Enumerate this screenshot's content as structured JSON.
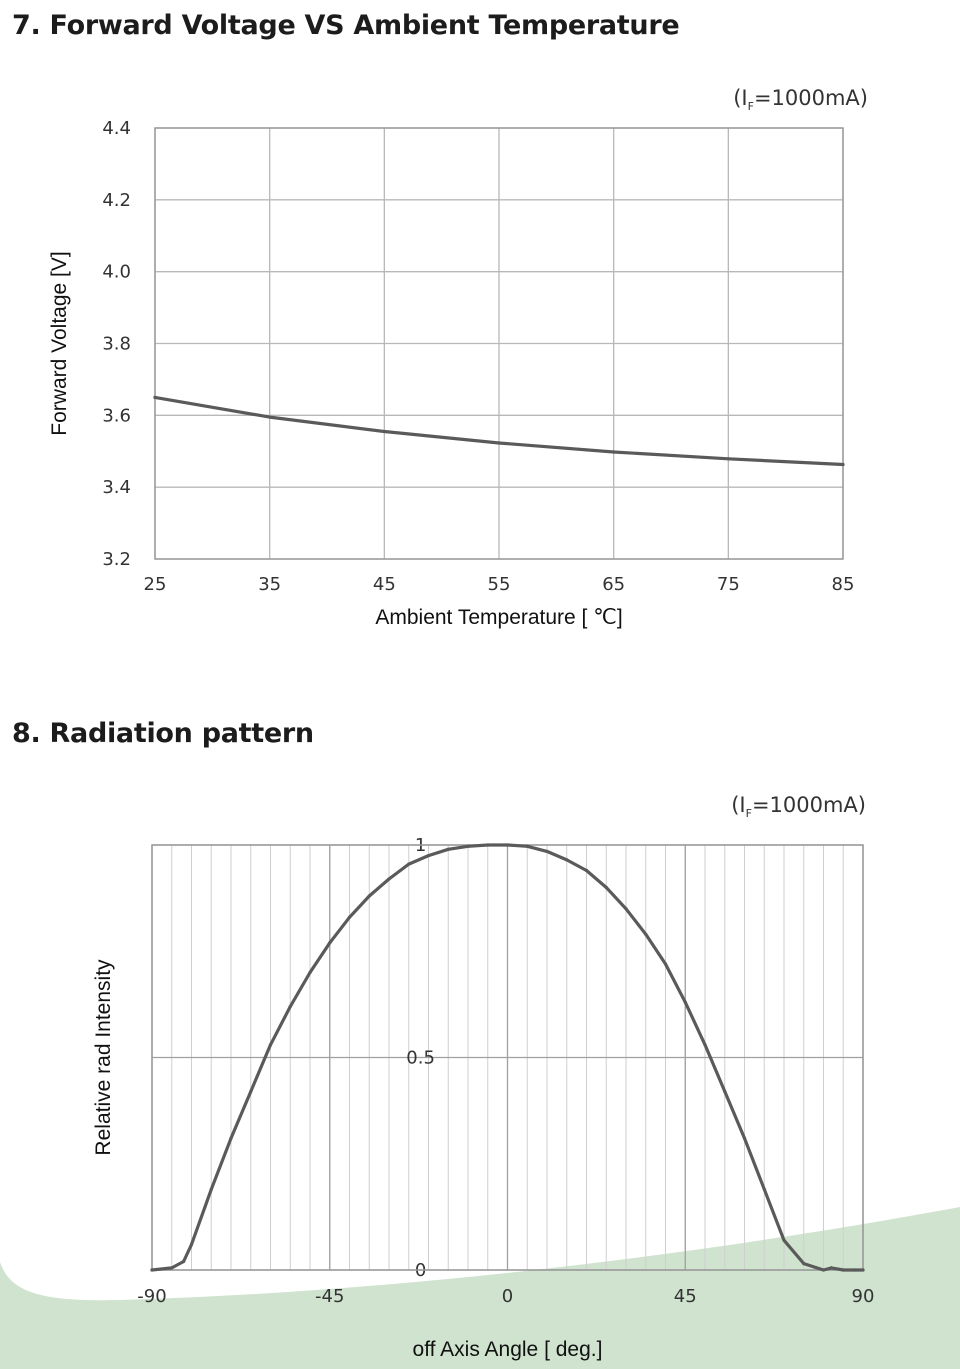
{
  "sections": [
    {
      "title": "7. Forward Voltage  VS  Ambient Temperature"
    },
    {
      "title": "8. Radiation pattern"
    }
  ],
  "colors": {
    "curve": "#5a5a5a",
    "grid": "#b8b8b8",
    "background_swoosh": "#cfe3cf"
  },
  "chart_data": [
    {
      "type": "line",
      "condition": {
        "prefix": "(I",
        "sub": "F",
        "suffix": "=1000mA)"
      },
      "xlabel": "Ambient Temperature [ ℃]",
      "ylabel": "Forward Voltage [V]",
      "xlim": [
        25,
        85
      ],
      "ylim": [
        3.2,
        4.4
      ],
      "x_ticks": [
        "25",
        "35",
        "45",
        "55",
        "65",
        "75",
        "85"
      ],
      "y_ticks": [
        "3.2",
        "3.4",
        "3.6",
        "3.8",
        "4.0",
        "4.2",
        "4.4"
      ],
      "grid": true,
      "series": [
        {
          "x": [
            25,
            35,
            45,
            55,
            65,
            75,
            85
          ],
          "y": [
            3.65,
            3.595,
            3.555,
            3.523,
            3.498,
            3.479,
            3.463
          ]
        }
      ]
    },
    {
      "type": "line",
      "condition": {
        "prefix": "(I",
        "sub": "F",
        "suffix": "=1000mA)"
      },
      "xlabel": "off Axis Angle [ deg.]",
      "ylabel": "Relative rad Intensity",
      "xlim": [
        -90,
        90
      ],
      "ylim": [
        0,
        1
      ],
      "x_ticks": [
        "-90",
        "-45",
        "0",
        "45",
        "90"
      ],
      "y_ticks": [
        "0",
        "0.5",
        "1"
      ],
      "grid": true,
      "series": [
        {
          "x": [
            -90,
            -85,
            -82,
            -80,
            -75,
            -70,
            -65,
            -60,
            -55,
            -50,
            -45,
            -40,
            -35,
            -30,
            -25,
            -20,
            -15,
            -10,
            -5,
            0,
            5,
            10,
            15,
            20,
            25,
            30,
            35,
            40,
            45,
            50,
            55,
            60,
            65,
            70,
            75,
            80,
            82,
            85,
            88,
            90
          ],
          "y": [
            0,
            0.005,
            0.02,
            0.06,
            0.19,
            0.31,
            0.42,
            0.53,
            0.62,
            0.7,
            0.77,
            0.83,
            0.88,
            0.92,
            0.955,
            0.975,
            0.99,
            0.997,
            1.0,
            1.0,
            0.997,
            0.985,
            0.965,
            0.94,
            0.9,
            0.85,
            0.79,
            0.72,
            0.63,
            0.53,
            0.42,
            0.31,
            0.19,
            0.07,
            0.015,
            0,
            0.005,
            0,
            0,
            0
          ]
        }
      ]
    }
  ]
}
